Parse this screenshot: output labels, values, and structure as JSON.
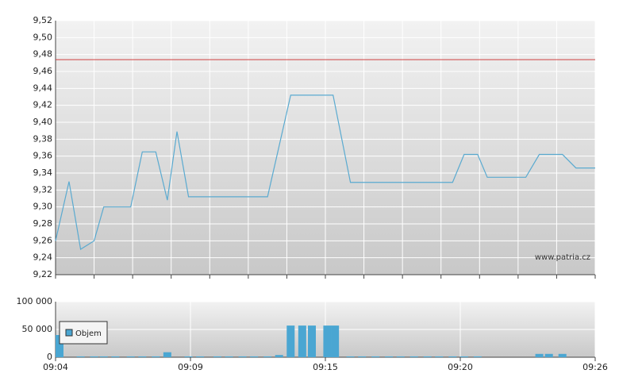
{
  "chart_data": [
    {
      "type": "line",
      "color": "#5aaad0",
      "xlim": [
        0,
        28
      ],
      "xticks": [
        0,
        2,
        4,
        6,
        8,
        10,
        12,
        14,
        16,
        18,
        20,
        22,
        24,
        26,
        28
      ],
      "show_xtick_labels": false,
      "ylim": [
        9.22,
        9.52
      ],
      "yticks": [
        {
          "value": 9.22,
          "label": "9,22"
        },
        {
          "value": 9.24,
          "label": "9,24"
        },
        {
          "value": 9.26,
          "label": "9,26"
        },
        {
          "value": 9.28,
          "label": "9,28"
        },
        {
          "value": 9.3,
          "label": "9,30"
        },
        {
          "value": 9.32,
          "label": "9,32"
        },
        {
          "value": 9.34,
          "label": "9,34"
        },
        {
          "value": 9.36,
          "label": "9,36"
        },
        {
          "value": 9.38,
          "label": "9,38"
        },
        {
          "value": 9.4,
          "label": "9,40"
        },
        {
          "value": 9.42,
          "label": "9,42"
        },
        {
          "value": 9.44,
          "label": "9,44"
        },
        {
          "value": 9.46,
          "label": "9,46"
        },
        {
          "value": 9.48,
          "label": "9,48"
        },
        {
          "value": 9.5,
          "label": "9,50"
        },
        {
          "value": 9.52,
          "label": "9,52"
        }
      ],
      "x": [
        0,
        0.7,
        1.3,
        2.0,
        2.5,
        3.9,
        4.5,
        5.2,
        5.8,
        6.3,
        6.9,
        11.0,
        12.2,
        14.4,
        15.3,
        20.6,
        21.2,
        21.9,
        22.4,
        24.4,
        25.1,
        26.3,
        27.0,
        28
      ],
      "values": [
        9.26,
        9.33,
        9.25,
        9.26,
        9.3,
        9.3,
        9.365,
        9.365,
        9.308,
        9.389,
        9.312,
        9.312,
        9.432,
        9.432,
        9.329,
        9.329,
        9.362,
        9.362,
        9.335,
        9.335,
        9.362,
        9.362,
        9.346,
        9.346
      ],
      "reference_line": {
        "value": 9.474,
        "color": "#d04040"
      },
      "watermark": "www.patria.cz"
    },
    {
      "type": "bar",
      "xlim": [
        0,
        28
      ],
      "xticks": [
        {
          "value": 0,
          "label": "09:04"
        },
        {
          "value": 7,
          "label": "09:09"
        },
        {
          "value": 14,
          "label": "09:15"
        },
        {
          "value": 21,
          "label": "09:20"
        },
        {
          "value": 28,
          "label": "09:26"
        }
      ],
      "show_xtick_labels": true,
      "ylim": [
        0,
        100000
      ],
      "yticks": [
        0,
        {
          "value": 50000,
          "label": "50 000"
        },
        {
          "value": 100000,
          "label": "100 000"
        }
      ],
      "x": [
        0.1,
        1.3,
        2.0,
        2.5,
        3.1,
        3.9,
        4.5,
        5.2,
        5.8,
        6.9,
        7.5,
        8.4,
        9.0,
        9.7,
        10.3,
        11.0,
        11.6,
        12.2,
        12.8,
        13.3,
        14.1,
        14.5,
        15.3,
        15.9,
        16.6,
        17.3,
        17.9,
        18.6,
        19.3,
        19.9,
        20.6,
        21.2,
        21.9,
        25.1,
        25.6,
        26.3
      ],
      "series": [
        {
          "name": "Objem",
          "color": "#4aa6d2",
          "values": [
            40000,
            1500,
            1500,
            1500,
            1500,
            1500,
            1500,
            1500,
            9000,
            1500,
            1500,
            1500,
            1500,
            1500,
            1500,
            1500,
            4000,
            57000,
            57000,
            57000,
            57000,
            57000,
            1500,
            1500,
            1500,
            1500,
            1500,
            1500,
            1500,
            1500,
            1500,
            1500,
            1500,
            6000,
            6000,
            6000
          ]
        }
      ]
    }
  ]
}
